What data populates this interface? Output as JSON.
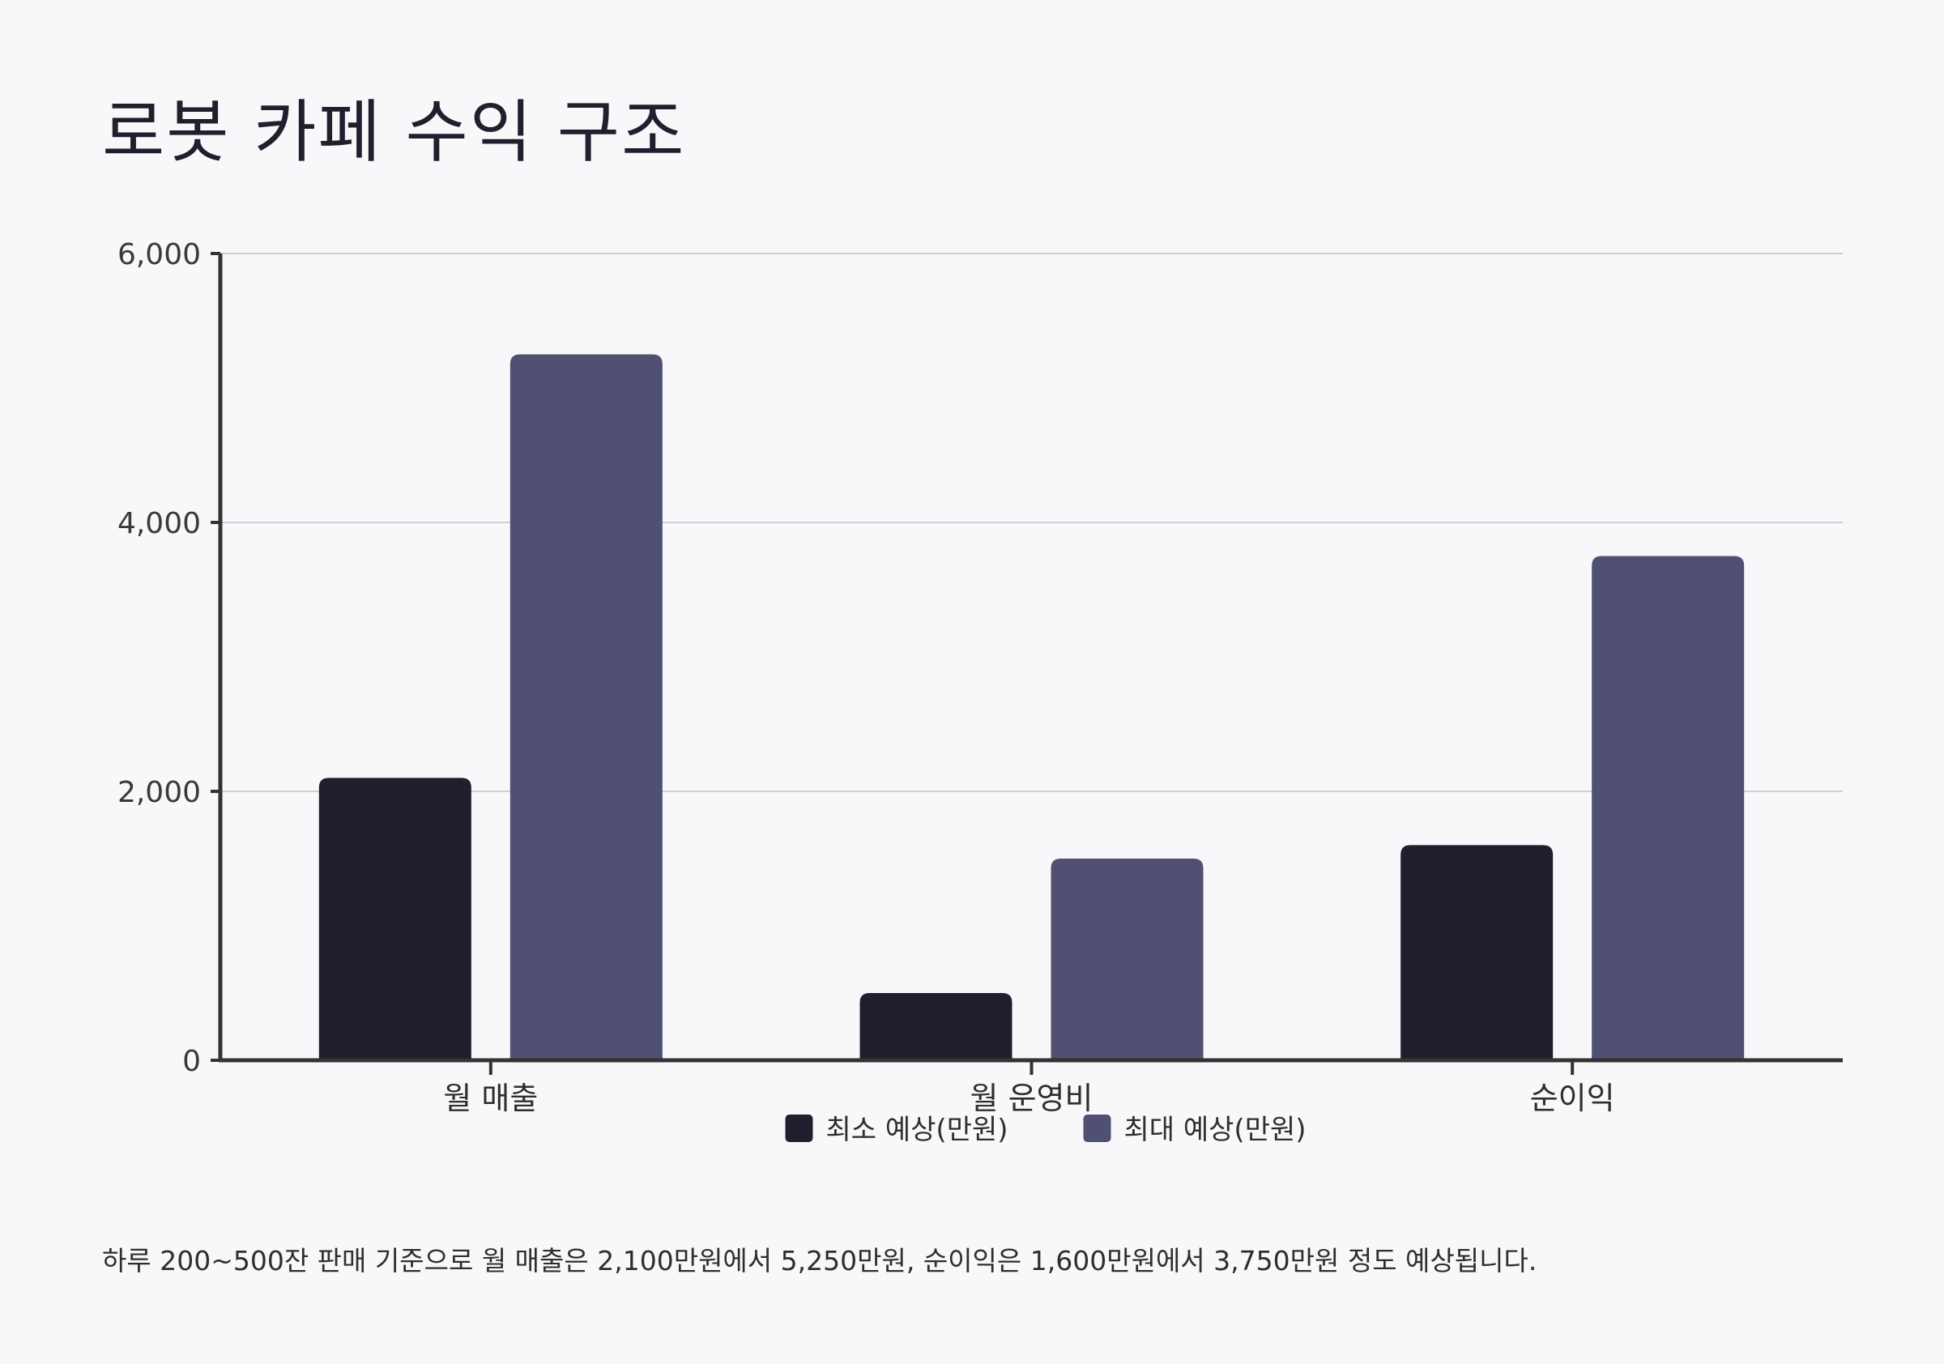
{
  "title": "로봇 카페 수익 구조",
  "footnote": "하루 200~500잔 판매 기준으로 월 매출은 2,100만원에서 5,250만원, 순이익은 1,600만원에서 3,750만원 정도 예상됩니다.",
  "chart_data": {
    "type": "bar",
    "title": "로봇 카페 수익 구조",
    "xlabel": "",
    "ylabel": "",
    "categories": [
      "월 매출",
      "월 운영비",
      "순이익"
    ],
    "series": [
      {
        "name": "최소 예상(만원)",
        "values": [
          2100,
          500,
          1600
        ],
        "color": "#1f1f2e"
      },
      {
        "name": "최대 예상(만원)",
        "values": [
          5250,
          1500,
          3750
        ],
        "color": "#4f5072"
      }
    ],
    "ylim": [
      0,
      6000
    ],
    "yticks": [
      0,
      2000,
      4000,
      6000
    ],
    "ytick_labels": [
      "0",
      "2,000",
      "4,000",
      "6,000"
    ],
    "grid": true,
    "legend_position": "bottom-center"
  },
  "colors": {
    "background": "#f8f8fa",
    "axis": "#333333",
    "grid": "#cfcfd4",
    "series_min": "#1f1f2e",
    "series_max": "#4f5072"
  }
}
